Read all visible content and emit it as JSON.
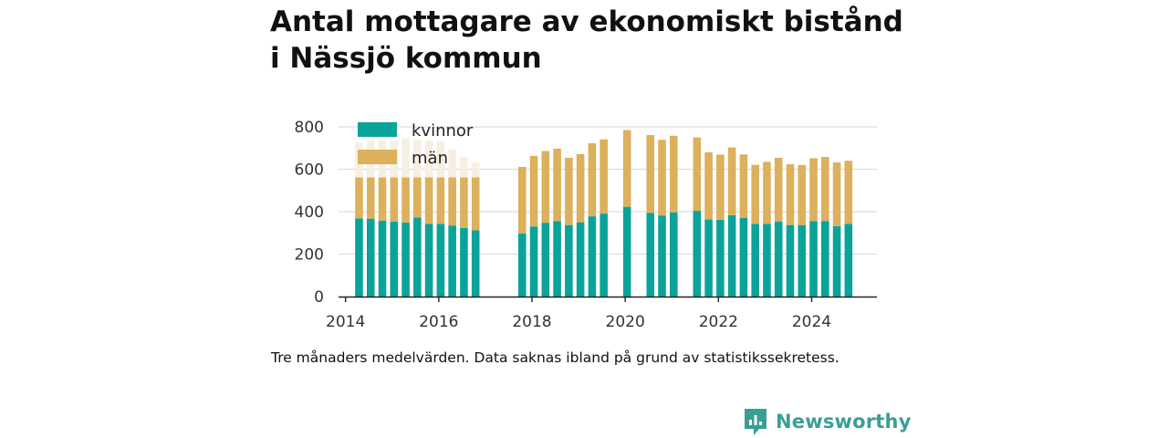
{
  "title_lines": [
    "Antal mottagare av ekonomiskt bistånd",
    "i Nässjö kommun"
  ],
  "caption": "Tre månaders medelvärden. Data saknas ibland på grund av statistikssekretess.",
  "brand": {
    "name": "Newsworthy",
    "icon": "newsworthy-logo-icon",
    "color": "#3a9e96"
  },
  "colors": {
    "kvinnor": "#0aa39a",
    "man": "#dcb05c",
    "man_faded": "#f7efe2",
    "grid": "#dddddd",
    "axis": "#222222"
  },
  "chart_data": {
    "type": "bar",
    "stacked": true,
    "title": "Antal mottagare av ekonomiskt bistånd i Nässjö kommun",
    "xlabel": "",
    "ylabel": "",
    "ylim": [
      0,
      800
    ],
    "xlim": [
      2013.85,
      2025.4
    ],
    "yticks": [
      "0",
      "200",
      "400",
      "600",
      "800"
    ],
    "xticks": [
      "2014",
      "2016",
      "2018",
      "2020",
      "2022",
      "2024"
    ],
    "grid": true,
    "legend": {
      "position": "top-left",
      "entries": [
        "kvinnor",
        "män"
      ]
    },
    "x": [
      2014.29,
      2014.54,
      2014.79,
      2015.04,
      2015.29,
      2015.54,
      2015.79,
      2016.04,
      2016.29,
      2016.54,
      2016.79,
      2017.79,
      2018.04,
      2018.29,
      2018.54,
      2018.79,
      2019.04,
      2019.29,
      2019.54,
      2020.04,
      2020.54,
      2020.79,
      2021.04,
      2021.54,
      2021.79,
      2022.04,
      2022.29,
      2022.54,
      2022.79,
      2023.04,
      2023.29,
      2023.54,
      2023.79,
      2024.04,
      2024.29,
      2024.54,
      2024.79
    ],
    "series": [
      {
        "name": "kvinnor",
        "values": [
          368,
          367,
          358,
          353,
          349,
          372,
          342,
          343,
          335,
          323,
          312,
          298,
          330,
          348,
          356,
          337,
          350,
          378,
          391,
          423,
          395,
          382,
          397,
          404,
          363,
          362,
          383,
          370,
          343,
          343,
          354,
          337,
          337,
          356,
          356,
          332,
          342
        ]
      },
      {
        "name": "män",
        "values": [
          357,
          371,
          378,
          382,
          396,
          367,
          392,
          390,
          358,
          336,
          320,
          313,
          333,
          338,
          341,
          317,
          322,
          345,
          350,
          362,
          366,
          357,
          361,
          346,
          317,
          307,
          320,
          300,
          278,
          292,
          300,
          287,
          283,
          296,
          302,
          300,
          298
        ]
      }
    ],
    "man_visible_cap": 562,
    "man_capped_until_index": 10
  }
}
